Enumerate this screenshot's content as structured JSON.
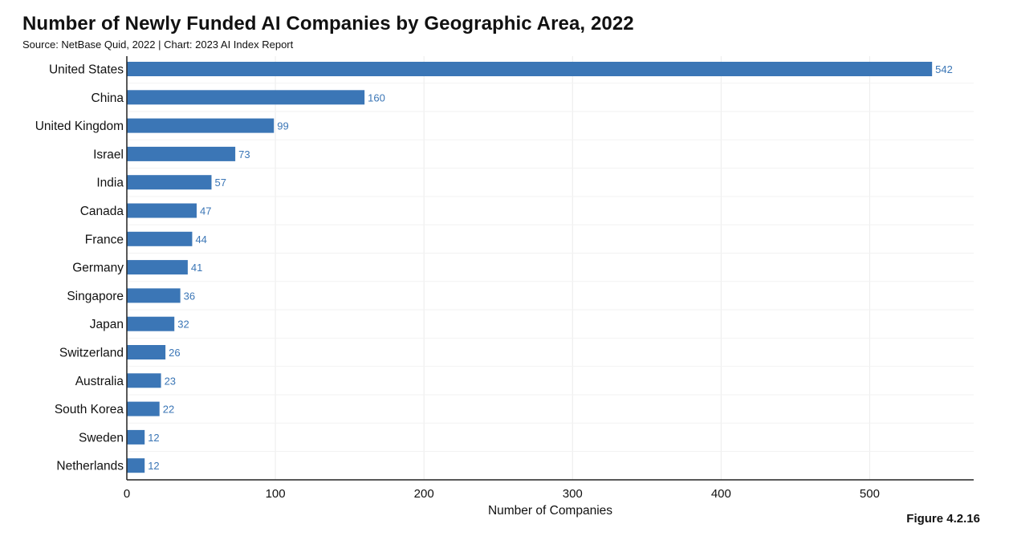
{
  "title": "Number of Newly Funded AI Companies by Geographic Area, 2022",
  "subtitle": "Source: NetBase Quid, 2022 | Chart: 2023 AI Index Report",
  "figure_label": "Figure 4.2.16",
  "colors": {
    "bar": "#3b76b6",
    "value_label": "#3b76b6",
    "grid": "#ececec",
    "axis": "#222222"
  },
  "chart_data": {
    "type": "bar",
    "orientation": "horizontal",
    "title": "Number of Newly Funded AI Companies by Geographic Area, 2022",
    "xlabel": "Number of Companies",
    "ylabel": "",
    "categories": [
      "United States",
      "China",
      "United Kingdom",
      "Israel",
      "India",
      "Canada",
      "France",
      "Germany",
      "Singapore",
      "Japan",
      "Switzerland",
      "Australia",
      "South Korea",
      "Sweden",
      "Netherlands"
    ],
    "values": [
      542,
      160,
      99,
      73,
      57,
      47,
      44,
      41,
      36,
      32,
      26,
      23,
      22,
      12,
      12
    ],
    "xlim": [
      0,
      570
    ],
    "xticks": [
      0,
      100,
      200,
      300,
      400,
      500
    ],
    "grid": true,
    "data_labels": true
  }
}
